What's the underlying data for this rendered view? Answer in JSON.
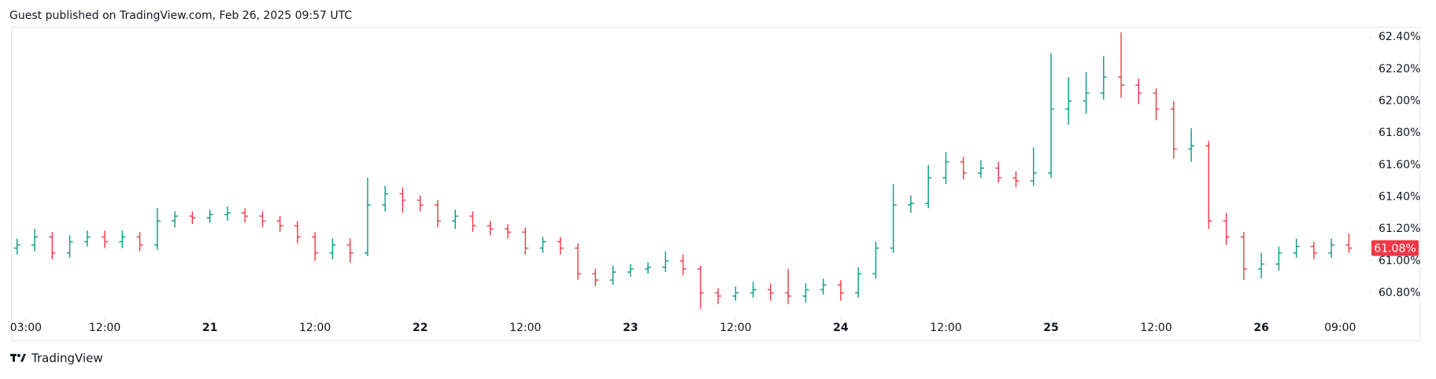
{
  "header": {
    "text": "Guest published on TradingView.com, Feb 26, 2025 09:57 UTC"
  },
  "footer": {
    "brand": "TradingView"
  },
  "chart_data": {
    "type": "ohlc",
    "up_color": "#089981",
    "down_color": "#f23645",
    "x": [
      2,
      4,
      6,
      8,
      10,
      12,
      14,
      16,
      18,
      20,
      22,
      24,
      26,
      28,
      30,
      32,
      34,
      36,
      38,
      40,
      42,
      44,
      46,
      48,
      50,
      52,
      54,
      56,
      58,
      60,
      62,
      64,
      66,
      68,
      70,
      72,
      74,
      76,
      78,
      80,
      82,
      84,
      86,
      88,
      90,
      92,
      94,
      96,
      98,
      100,
      102,
      104,
      106,
      108,
      110,
      112,
      114,
      116,
      118,
      120,
      122,
      124,
      126,
      128,
      130,
      132,
      134,
      136,
      138,
      140,
      142,
      144,
      146,
      148,
      150,
      152,
      154
    ],
    "open": [
      61.08,
      61.1,
      61.15,
      61.05,
      61.12,
      61.15,
      61.12,
      61.15,
      61.1,
      61.25,
      61.28,
      61.27,
      61.29,
      61.3,
      61.28,
      61.25,
      61.22,
      61.15,
      61.05,
      61.1,
      61.05,
      61.35,
      61.42,
      61.38,
      61.35,
      61.25,
      61.28,
      61.22,
      61.2,
      61.18,
      61.08,
      61.12,
      61.08,
      60.92,
      60.88,
      60.93,
      60.95,
      60.96,
      61.0,
      60.95,
      60.8,
      60.78,
      60.8,
      60.82,
      60.8,
      60.78,
      60.82,
      60.85,
      60.8,
      60.92,
      61.08,
      61.35,
      61.36,
      61.52,
      61.62,
      61.55,
      61.58,
      61.52,
      61.5,
      61.55,
      61.95,
      62.0,
      62.05,
      62.15,
      62.1,
      62.05,
      61.95,
      61.7,
      61.72,
      61.25,
      61.15,
      60.95,
      60.98,
      61.05,
      61.09,
      61.05,
      61.1
    ],
    "high": [
      61.14,
      61.2,
      61.18,
      61.16,
      61.19,
      61.19,
      61.19,
      61.18,
      61.33,
      61.31,
      61.31,
      61.32,
      61.34,
      61.33,
      61.31,
      61.28,
      61.25,
      61.18,
      61.14,
      61.14,
      61.52,
      61.47,
      61.46,
      61.41,
      61.38,
      61.32,
      61.31,
      61.25,
      61.23,
      61.21,
      61.15,
      61.15,
      61.11,
      60.95,
      60.97,
      60.98,
      60.99,
      61.06,
      61.04,
      60.97,
      60.83,
      60.84,
      60.87,
      60.86,
      60.95,
      60.86,
      60.89,
      60.88,
      60.96,
      61.12,
      61.48,
      61.41,
      61.6,
      61.68,
      61.65,
      61.63,
      61.62,
      61.56,
      61.71,
      62.3,
      62.15,
      62.18,
      62.28,
      62.43,
      62.14,
      62.08,
      62.0,
      61.83,
      61.75,
      61.3,
      61.18,
      61.05,
      61.09,
      61.14,
      61.12,
      61.14,
      61.17
    ],
    "low": [
      61.04,
      61.06,
      61.01,
      61.02,
      61.09,
      61.08,
      61.08,
      61.06,
      61.07,
      61.21,
      61.23,
      61.24,
      61.25,
      61.24,
      61.21,
      61.18,
      61.11,
      61.0,
      61.01,
      60.99,
      61.03,
      61.31,
      61.3,
      61.31,
      61.21,
      61.2,
      61.18,
      61.16,
      61.14,
      61.04,
      61.05,
      61.04,
      60.88,
      60.84,
      60.85,
      60.9,
      60.92,
      60.93,
      60.91,
      60.7,
      60.73,
      60.75,
      60.77,
      60.75,
      60.73,
      60.74,
      60.79,
      60.75,
      60.77,
      60.89,
      61.05,
      61.3,
      61.33,
      61.48,
      61.51,
      61.52,
      61.49,
      61.46,
      61.47,
      61.52,
      61.85,
      61.92,
      62.01,
      62.02,
      61.98,
      61.88,
      61.64,
      61.62,
      61.2,
      61.1,
      60.88,
      60.89,
      60.94,
      61.02,
      61.01,
      61.02,
      61.05
    ],
    "close": [
      61.1,
      61.15,
      61.05,
      61.12,
      61.15,
      61.12,
      61.15,
      61.1,
      61.25,
      61.28,
      61.27,
      61.29,
      61.3,
      61.28,
      61.25,
      61.22,
      61.15,
      61.05,
      61.1,
      61.05,
      61.35,
      61.42,
      61.38,
      61.35,
      61.25,
      61.28,
      61.22,
      61.2,
      61.18,
      61.08,
      61.12,
      61.08,
      60.92,
      60.88,
      60.93,
      60.95,
      60.96,
      61.0,
      60.95,
      60.8,
      60.78,
      60.8,
      60.82,
      60.8,
      60.78,
      60.82,
      60.85,
      60.8,
      60.92,
      61.08,
      61.35,
      61.36,
      61.52,
      61.62,
      61.55,
      61.58,
      61.52,
      61.5,
      61.55,
      61.95,
      62.0,
      62.05,
      62.15,
      62.1,
      62.05,
      61.95,
      61.7,
      61.72,
      61.25,
      61.15,
      60.95,
      60.98,
      61.05,
      61.09,
      61.05,
      61.1,
      61.08
    ],
    "xlim": [
      1.3,
      156.3
    ],
    "xticks": [
      {
        "value": 3,
        "label": "03:00"
      },
      {
        "value": 12,
        "label": "12:00"
      },
      {
        "value": 24,
        "label": "21"
      },
      {
        "value": 36,
        "label": "12:00"
      },
      {
        "value": 48,
        "label": "22"
      },
      {
        "value": 60,
        "label": "12:00"
      },
      {
        "value": 72,
        "label": "23"
      },
      {
        "value": 84,
        "label": "12:00"
      },
      {
        "value": 96,
        "label": "24"
      },
      {
        "value": 108,
        "label": "12:00"
      },
      {
        "value": 120,
        "label": "25"
      },
      {
        "value": 132,
        "label": "12:00"
      },
      {
        "value": 144,
        "label": "26"
      },
      {
        "value": 153,
        "label": "09:00"
      }
    ],
    "ylim": [
      60.64,
      62.46
    ],
    "yticks": [
      {
        "value": 60.8,
        "label": "60.80%"
      },
      {
        "value": 61.0,
        "label": "61.00%"
      },
      {
        "value": 61.2,
        "label": "61.20%"
      },
      {
        "value": 61.4,
        "label": "61.40%"
      },
      {
        "value": 61.6,
        "label": "61.60%"
      },
      {
        "value": 61.8,
        "label": "61.80%"
      },
      {
        "value": 62.0,
        "label": "62.00%"
      },
      {
        "value": 62.2,
        "label": "62.20%"
      },
      {
        "value": 62.4,
        "label": "62.40%"
      }
    ],
    "last_value": 61.08,
    "last_value_label": "61.08%",
    "last_value_color": "#f23645"
  }
}
